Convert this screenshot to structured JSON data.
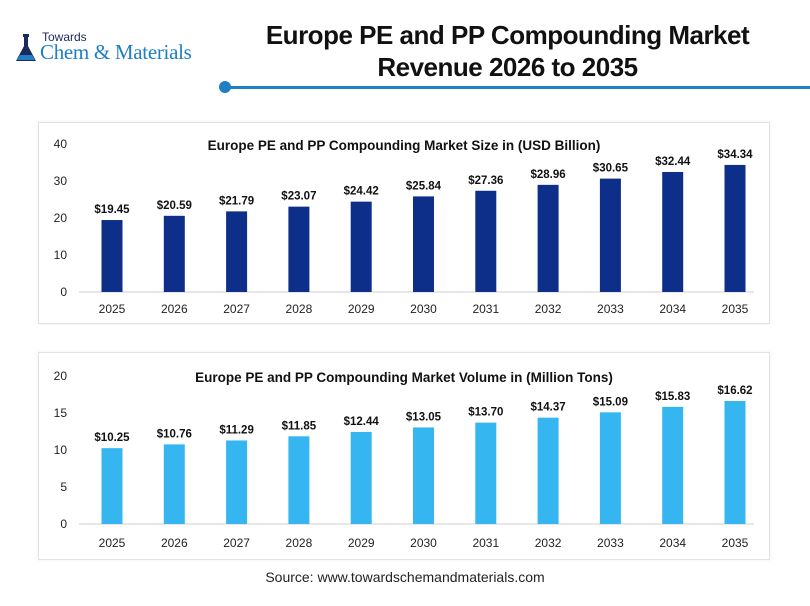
{
  "header": {
    "logo_top": "Towards",
    "logo_main": "Chem & Materials",
    "title_line1": "Europe PE and PP Compounding Market",
    "title_line2": "Revenue 2026 to 2035",
    "accent_color": "#1e7fc2"
  },
  "chart_data": [
    {
      "type": "bar",
      "title": "Europe PE and PP Compounding Market Size in (USD Billion)",
      "categories": [
        "2025",
        "2026",
        "2027",
        "2028",
        "2029",
        "2030",
        "2031",
        "2032",
        "2033",
        "2034",
        "2035"
      ],
      "values": [
        19.45,
        20.59,
        21.79,
        23.07,
        24.42,
        25.84,
        27.36,
        28.96,
        30.65,
        32.44,
        34.34
      ],
      "data_labels": [
        "$19.45",
        "$20.59",
        "$21.79",
        "$23.07",
        "$24.42",
        "$25.84",
        "$27.36",
        "$28.96",
        "$30.65",
        "$32.44",
        "$34.34"
      ],
      "ylim": [
        0,
        40
      ],
      "yticks": [
        0,
        10,
        20,
        30,
        40
      ],
      "grid": false,
      "color": "#0d2f8a"
    },
    {
      "type": "bar",
      "title": "Europe PE and PP Compounding Market Volume in (Million Tons)",
      "categories": [
        "2025",
        "2026",
        "2027",
        "2028",
        "2029",
        "2030",
        "2031",
        "2032",
        "2033",
        "2034",
        "2035"
      ],
      "values": [
        10.25,
        10.76,
        11.29,
        11.85,
        12.44,
        13.05,
        13.7,
        14.37,
        15.09,
        15.83,
        16.62
      ],
      "data_labels": [
        "$10.25",
        "$10.76",
        "$11.29",
        "$11.85",
        "$12.44",
        "$13.05",
        "$13.70",
        "$14.37",
        "$15.09",
        "$15.83",
        "$16.62"
      ],
      "ylim": [
        0,
        20
      ],
      "yticks": [
        0,
        5,
        10,
        15,
        20
      ],
      "grid": false,
      "color": "#35b6f0"
    }
  ],
  "footer": {
    "source": "Source: www.towardschemandmaterials.com"
  }
}
